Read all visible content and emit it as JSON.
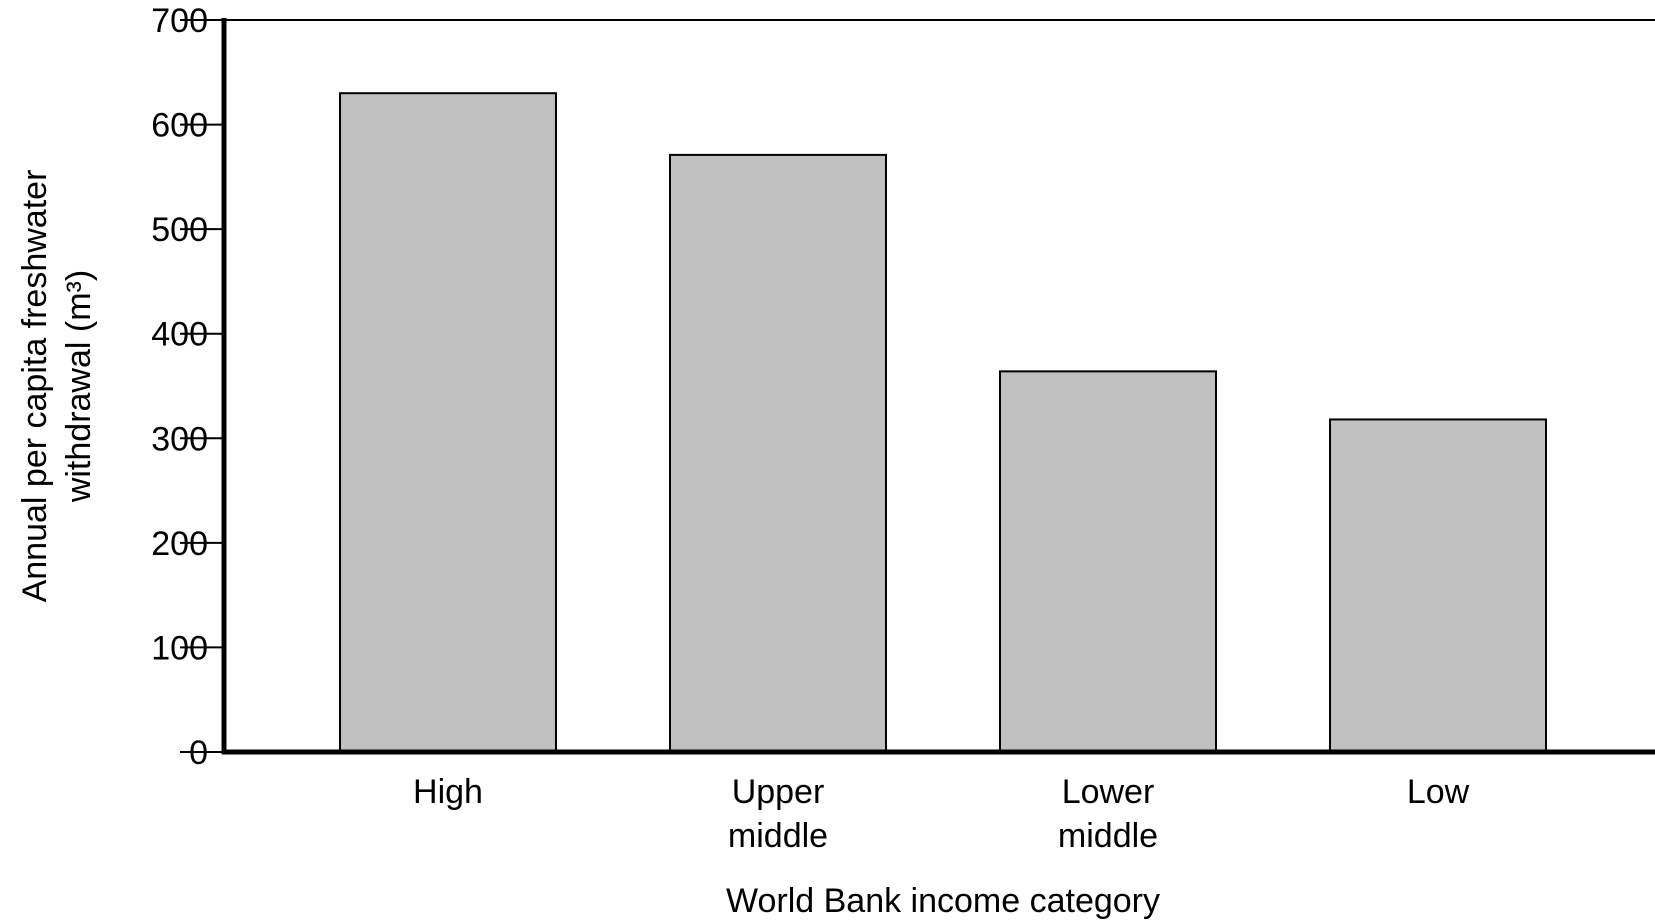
{
  "chart_data": {
    "type": "bar",
    "categories": [
      [
        "High"
      ],
      [
        "Upper",
        "middle"
      ],
      [
        "Lower",
        "middle"
      ],
      [
        "Low"
      ]
    ],
    "values": [
      630,
      571,
      364,
      318
    ],
    "title": "",
    "xlabel": "World Bank income category",
    "ylabel_lines": [
      "Annual per capita freshwater",
      "withdrawal (m³)"
    ],
    "ylim": [
      0,
      700
    ],
    "yticks": [
      0,
      100,
      200,
      300,
      400,
      500,
      600,
      700
    ],
    "grid": false,
    "bar_color": "#c0c0c0",
    "bar_edge_color": "#000000"
  }
}
